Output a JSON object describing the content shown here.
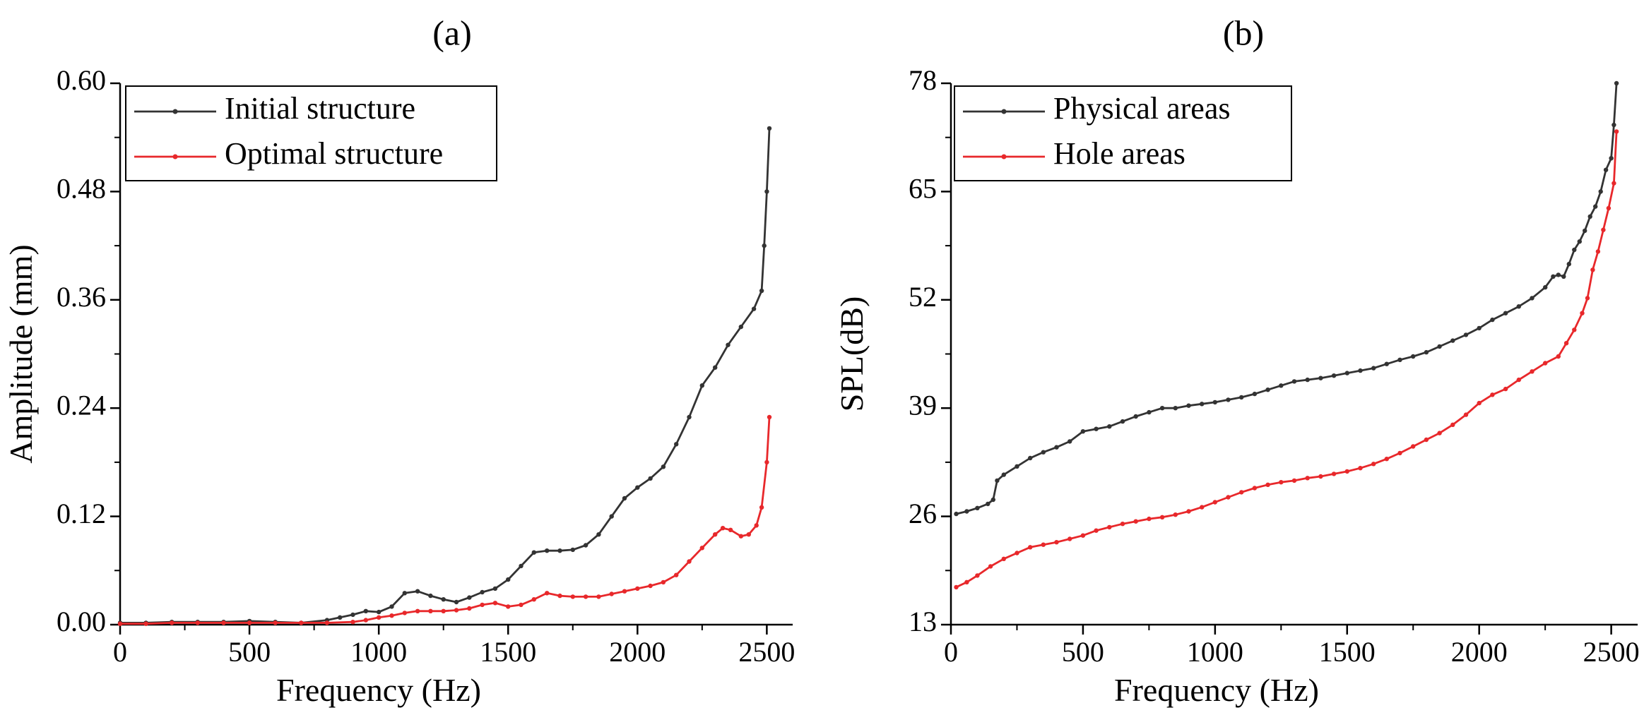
{
  "chart_data": [
    {
      "type": "line",
      "panel_label": "(a)",
      "xlabel": "Frequency (Hz)",
      "ylabel": "Amplitude (mm)",
      "xlim": [
        0,
        2600
      ],
      "ylim": [
        0,
        0.6
      ],
      "xticks": [
        0,
        500,
        1000,
        1500,
        2000,
        2500
      ],
      "xtick_labels": [
        "0",
        "500",
        "1000",
        "1500",
        "2000",
        "2500"
      ],
      "yticks": [
        0,
        0.12,
        0.24,
        0.36,
        0.48,
        0.6
      ],
      "ytick_labels": [
        "0.00",
        "0.12",
        "0.24",
        "0.36",
        "0.48",
        "0.60"
      ],
      "legend_position": "top-left",
      "series": [
        {
          "name": "Initial structure",
          "color": "#333333",
          "x": [
            0,
            100,
            200,
            300,
            400,
            500,
            600,
            700,
            800,
            850,
            900,
            950,
            1000,
            1050,
            1100,
            1150,
            1200,
            1250,
            1300,
            1350,
            1400,
            1450,
            1500,
            1550,
            1600,
            1650,
            1700,
            1750,
            1800,
            1850,
            1900,
            1950,
            2000,
            2050,
            2100,
            2150,
            2200,
            2250,
            2300,
            2350,
            2400,
            2450,
            2480,
            2490,
            2500,
            2510
          ],
          "y": [
            0.002,
            0.002,
            0.003,
            0.003,
            0.003,
            0.004,
            0.003,
            0.002,
            0.005,
            0.008,
            0.011,
            0.015,
            0.014,
            0.02,
            0.035,
            0.037,
            0.032,
            0.028,
            0.025,
            0.03,
            0.036,
            0.04,
            0.05,
            0.065,
            0.08,
            0.082,
            0.082,
            0.083,
            0.088,
            0.1,
            0.12,
            0.14,
            0.152,
            0.162,
            0.175,
            0.2,
            0.23,
            0.265,
            0.285,
            0.31,
            0.33,
            0.35,
            0.37,
            0.42,
            0.48,
            0.55
          ]
        },
        {
          "name": "Optimal structure",
          "color": "#e8282b",
          "x": [
            0,
            100,
            200,
            300,
            400,
            500,
            600,
            700,
            800,
            900,
            950,
            1000,
            1050,
            1100,
            1150,
            1200,
            1250,
            1300,
            1350,
            1400,
            1450,
            1500,
            1550,
            1600,
            1650,
            1700,
            1750,
            1800,
            1850,
            1900,
            1950,
            2000,
            2050,
            2100,
            2150,
            2200,
            2250,
            2300,
            2330,
            2360,
            2400,
            2430,
            2460,
            2480,
            2500,
            2510
          ],
          "y": [
            0.001,
            0.001,
            0.002,
            0.002,
            0.002,
            0.002,
            0.002,
            0.002,
            0.002,
            0.003,
            0.005,
            0.008,
            0.01,
            0.013,
            0.015,
            0.015,
            0.015,
            0.016,
            0.018,
            0.022,
            0.024,
            0.02,
            0.022,
            0.028,
            0.035,
            0.032,
            0.031,
            0.031,
            0.031,
            0.034,
            0.037,
            0.04,
            0.043,
            0.047,
            0.055,
            0.07,
            0.085,
            0.1,
            0.107,
            0.105,
            0.098,
            0.1,
            0.11,
            0.13,
            0.18,
            0.23
          ]
        }
      ]
    },
    {
      "type": "line",
      "panel_label": "(b)",
      "xlabel": "Frequency (Hz)",
      "ylabel": "SPL(dB)",
      "xlim": [
        0,
        2600
      ],
      "ylim": [
        13,
        78
      ],
      "xticks": [
        0,
        500,
        1000,
        1500,
        2000,
        2500
      ],
      "xtick_labels": [
        "0",
        "500",
        "1000",
        "1500",
        "2000",
        "2500"
      ],
      "yticks": [
        13,
        26,
        39,
        52,
        65,
        78
      ],
      "ytick_labels": [
        "13",
        "26",
        "39",
        "52",
        "65",
        "78"
      ],
      "legend_position": "top-left",
      "series": [
        {
          "name": "Physical areas",
          "color": "#333333",
          "x": [
            20,
            60,
            100,
            140,
            160,
            175,
            200,
            250,
            300,
            350,
            400,
            450,
            500,
            550,
            600,
            650,
            700,
            750,
            800,
            850,
            900,
            950,
            1000,
            1050,
            1100,
            1150,
            1200,
            1250,
            1300,
            1350,
            1400,
            1450,
            1500,
            1550,
            1600,
            1650,
            1700,
            1750,
            1800,
            1850,
            1900,
            1950,
            2000,
            2050,
            2100,
            2150,
            2200,
            2250,
            2280,
            2300,
            2320,
            2340,
            2360,
            2380,
            2400,
            2420,
            2440,
            2460,
            2480,
            2500,
            2510,
            2520
          ],
          "y": [
            26.3,
            26.6,
            27,
            27.5,
            28,
            30.3,
            31,
            32,
            33,
            33.7,
            34.3,
            35,
            36.2,
            36.5,
            36.8,
            37.4,
            38,
            38.5,
            39,
            39,
            39.3,
            39.5,
            39.7,
            40,
            40.3,
            40.7,
            41.2,
            41.7,
            42.2,
            42.4,
            42.6,
            42.9,
            43.2,
            43.5,
            43.8,
            44.3,
            44.8,
            45.2,
            45.7,
            46.4,
            47.1,
            47.8,
            48.6,
            49.6,
            50.4,
            51.2,
            52.2,
            53.5,
            54.8,
            55,
            54.8,
            56.3,
            58,
            59,
            60.3,
            62,
            63.2,
            65,
            67.6,
            69,
            73,
            78
          ]
        },
        {
          "name": "Hole areas",
          "color": "#e8282b",
          "x": [
            20,
            60,
            100,
            150,
            200,
            250,
            300,
            350,
            400,
            450,
            500,
            550,
            600,
            650,
            700,
            750,
            800,
            850,
            900,
            950,
            1000,
            1050,
            1100,
            1150,
            1200,
            1250,
            1300,
            1350,
            1400,
            1450,
            1500,
            1550,
            1600,
            1650,
            1700,
            1750,
            1800,
            1850,
            1900,
            1950,
            2000,
            2050,
            2100,
            2150,
            2200,
            2250,
            2300,
            2330,
            2360,
            2390,
            2410,
            2430,
            2450,
            2470,
            2490,
            2510,
            2520
          ],
          "y": [
            17.5,
            18.1,
            18.9,
            20,
            20.9,
            21.6,
            22.3,
            22.6,
            22.9,
            23.3,
            23.7,
            24.3,
            24.7,
            25.1,
            25.4,
            25.7,
            25.9,
            26.2,
            26.6,
            27.1,
            27.7,
            28.3,
            28.9,
            29.4,
            29.8,
            30.1,
            30.3,
            30.6,
            30.8,
            31.1,
            31.4,
            31.8,
            32.3,
            32.9,
            33.6,
            34.4,
            35.2,
            36,
            37,
            38.2,
            39.6,
            40.6,
            41.3,
            42.4,
            43.4,
            44.4,
            45.2,
            46.8,
            48.4,
            50.4,
            52.2,
            55.6,
            57.8,
            60.4,
            63,
            66,
            72.2
          ]
        }
      ]
    }
  ]
}
